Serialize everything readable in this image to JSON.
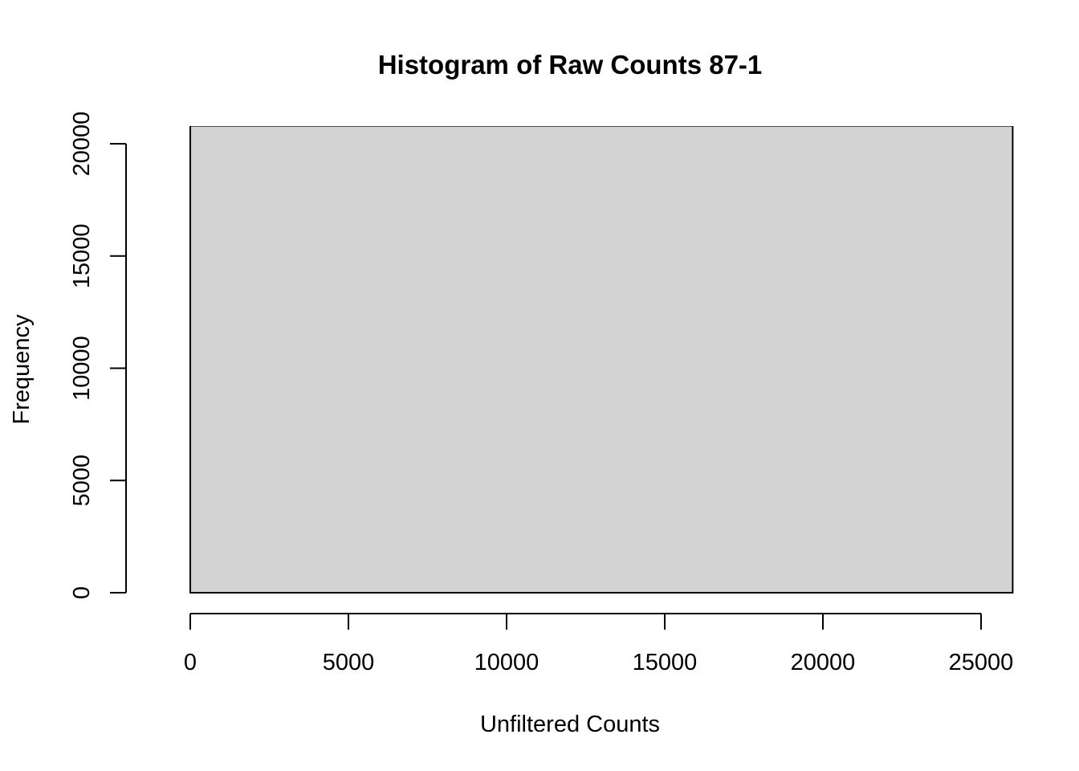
{
  "chart_data": {
    "type": "bar",
    "title": "Histogram of Raw Counts 87-1",
    "xlabel": "Unfiltered Counts",
    "ylabel": "Frequency",
    "xlim": [
      0,
      25000
    ],
    "ylim": [
      0,
      20000
    ],
    "x_ticks": [
      0,
      5000,
      10000,
      15000,
      20000,
      25000
    ],
    "y_ticks": [
      0,
      5000,
      10000,
      15000,
      20000
    ],
    "x_tick_labels": [
      "0",
      "5000",
      "10000",
      "15000",
      "20000",
      "25000"
    ],
    "y_tick_labels": [
      "0",
      "5000",
      "10000",
      "15000",
      "20000"
    ],
    "bins": [
      {
        "start": 0,
        "end": 26000,
        "count": 20800
      }
    ],
    "bar_fill": "#d3d3d3",
    "bar_outline": "#000000",
    "grid": false
  }
}
